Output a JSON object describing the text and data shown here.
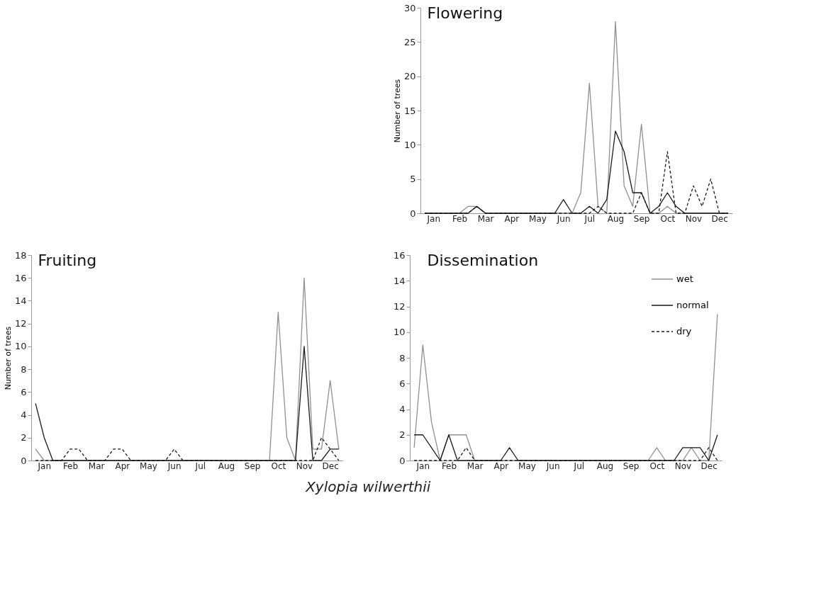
{
  "chart_data": [
    {
      "type": "line",
      "title": "Flowering",
      "ylabel": "Number of trees",
      "categories": [
        null,
        "Jan",
        null,
        null,
        "Feb",
        null,
        null,
        "Mar",
        null,
        null,
        "Apr",
        null,
        null,
        "May",
        null,
        null,
        "Jun",
        null,
        null,
        "Jul",
        null,
        null,
        "Aug",
        null,
        null,
        "Sep",
        null,
        null,
        "Oct",
        null,
        null,
        "Nov",
        null,
        null,
        "Dec",
        null
      ],
      "ylim": [
        0,
        30
      ],
      "yticks": [
        0,
        5,
        10,
        15,
        20,
        25,
        30
      ],
      "grid": false,
      "series": [
        {
          "color": "#909090",
          "line_style": "solid",
          "values": [
            0,
            0,
            0,
            0,
            0,
            1,
            1,
            0,
            0,
            0,
            0,
            0,
            0,
            0,
            0,
            0,
            0,
            0,
            3,
            19,
            1,
            0,
            28,
            4,
            1,
            13,
            0,
            0,
            1,
            0,
            0,
            0,
            0,
            0,
            0,
            0
          ]
        },
        {
          "color": "#1a1a1a",
          "line_style": "solid",
          "values": [
            0,
            0,
            0,
            0,
            0,
            0,
            1,
            0,
            0,
            0,
            0,
            0,
            0,
            0,
            0,
            0,
            2,
            0,
            0,
            1,
            0,
            2,
            12,
            9,
            3,
            3,
            0,
            1,
            3,
            1,
            0,
            0,
            0,
            0,
            0,
            0
          ]
        },
        {
          "color": "#1a1a1a",
          "line_style": "dashed",
          "values": [
            0,
            0,
            0,
            0,
            0,
            0,
            1,
            0,
            0,
            0,
            0,
            0,
            0,
            0,
            0,
            0,
            0,
            0,
            0,
            0,
            1,
            0,
            0,
            0,
            0,
            3,
            0,
            0,
            9,
            0,
            0,
            4,
            1,
            5,
            0,
            0
          ]
        }
      ]
    },
    {
      "type": "line",
      "title": "Fruiting",
      "ylabel": "Number of trees",
      "categories": [
        null,
        "Jan",
        null,
        null,
        "Feb",
        null,
        null,
        "Mar",
        null,
        null,
        "Apr",
        null,
        null,
        "May",
        null,
        null,
        "Jun",
        null,
        null,
        "Jul",
        null,
        null,
        "Aug",
        null,
        null,
        "Sep",
        null,
        null,
        "Oct",
        null,
        null,
        "Nov",
        null,
        null,
        "Dec",
        null
      ],
      "ylim": [
        0,
        18
      ],
      "yticks": [
        0,
        2,
        4,
        6,
        8,
        10,
        12,
        14,
        16,
        18
      ],
      "grid": false,
      "series": [
        {
          "color": "#909090",
          "line_style": "solid",
          "values": [
            1,
            0,
            0,
            0,
            0,
            0,
            0,
            0,
            0,
            0,
            0,
            0,
            0,
            0,
            0,
            0,
            0,
            0,
            0,
            0,
            0,
            0,
            0,
            0,
            0,
            0,
            0,
            0,
            13,
            2,
            0,
            16,
            1,
            1,
            7,
            1
          ]
        },
        {
          "color": "#1a1a1a",
          "line_style": "solid",
          "values": [
            5,
            2,
            0,
            0,
            0,
            0,
            0,
            0,
            0,
            0,
            0,
            0,
            0,
            0,
            0,
            0,
            0,
            0,
            0,
            0,
            0,
            0,
            0,
            0,
            0,
            0,
            0,
            0,
            0,
            0,
            0,
            10,
            0,
            0,
            1,
            1
          ]
        },
        {
          "color": "#1a1a1a",
          "line_style": "dashed",
          "values": [
            0,
            0,
            0,
            0,
            1,
            1,
            0,
            0,
            0,
            1,
            1,
            0,
            0,
            0,
            0,
            0,
            1,
            0,
            0,
            0,
            0,
            0,
            0,
            0,
            0,
            0,
            0,
            0,
            0,
            0,
            0,
            0,
            0,
            2,
            1,
            0
          ]
        }
      ]
    },
    {
      "type": "line",
      "title": "Dissemination",
      "categories": [
        null,
        "Jan",
        null,
        null,
        "Feb",
        null,
        null,
        "Mar",
        null,
        null,
        "Apr",
        null,
        null,
        "May",
        null,
        null,
        "Jun",
        null,
        null,
        "Jul",
        null,
        null,
        "Aug",
        null,
        null,
        "Sep",
        null,
        null,
        "Oct",
        null,
        null,
        "Nov",
        null,
        null,
        "Dec",
        null
      ],
      "ylim": [
        0,
        16
      ],
      "yticks": [
        0,
        2,
        4,
        6,
        8,
        10,
        12,
        14,
        16
      ],
      "grid": false,
      "legend": "top right",
      "annotations": [
        "Xylopia wilwerthii"
      ],
      "series": [
        {
          "name": "wet",
          "color": "#909090",
          "line_style": "solid",
          "values": [
            1,
            9,
            3,
            0,
            2,
            2,
            2,
            0,
            0,
            0,
            0,
            0,
            0,
            0,
            0,
            0,
            0,
            0,
            0,
            0,
            0,
            0,
            0,
            0,
            0,
            0,
            0,
            0,
            1,
            0,
            0,
            0,
            1,
            0,
            0,
            11.4
          ]
        },
        {
          "name": "normal",
          "color": "#1a1a1a",
          "line_style": "solid",
          "values": [
            2,
            2,
            1,
            0,
            2,
            0,
            0,
            0,
            0,
            0,
            0,
            1,
            0,
            0,
            0,
            0,
            0,
            0,
            0,
            0,
            0,
            0,
            0,
            0,
            0,
            0,
            0,
            0,
            0,
            0,
            0,
            1,
            1,
            1,
            0,
            2
          ]
        },
        {
          "name": "dry",
          "color": "#1a1a1a",
          "line_style": "dashed",
          "values": [
            0,
            0,
            0,
            0,
            0,
            0,
            1,
            0,
            0,
            0,
            0,
            0,
            0,
            0,
            0,
            0,
            0,
            0,
            0,
            0,
            0,
            0,
            0,
            0,
            0,
            0,
            0,
            0,
            0,
            0,
            0,
            0,
            0,
            0,
            1,
            0
          ]
        }
      ]
    }
  ]
}
